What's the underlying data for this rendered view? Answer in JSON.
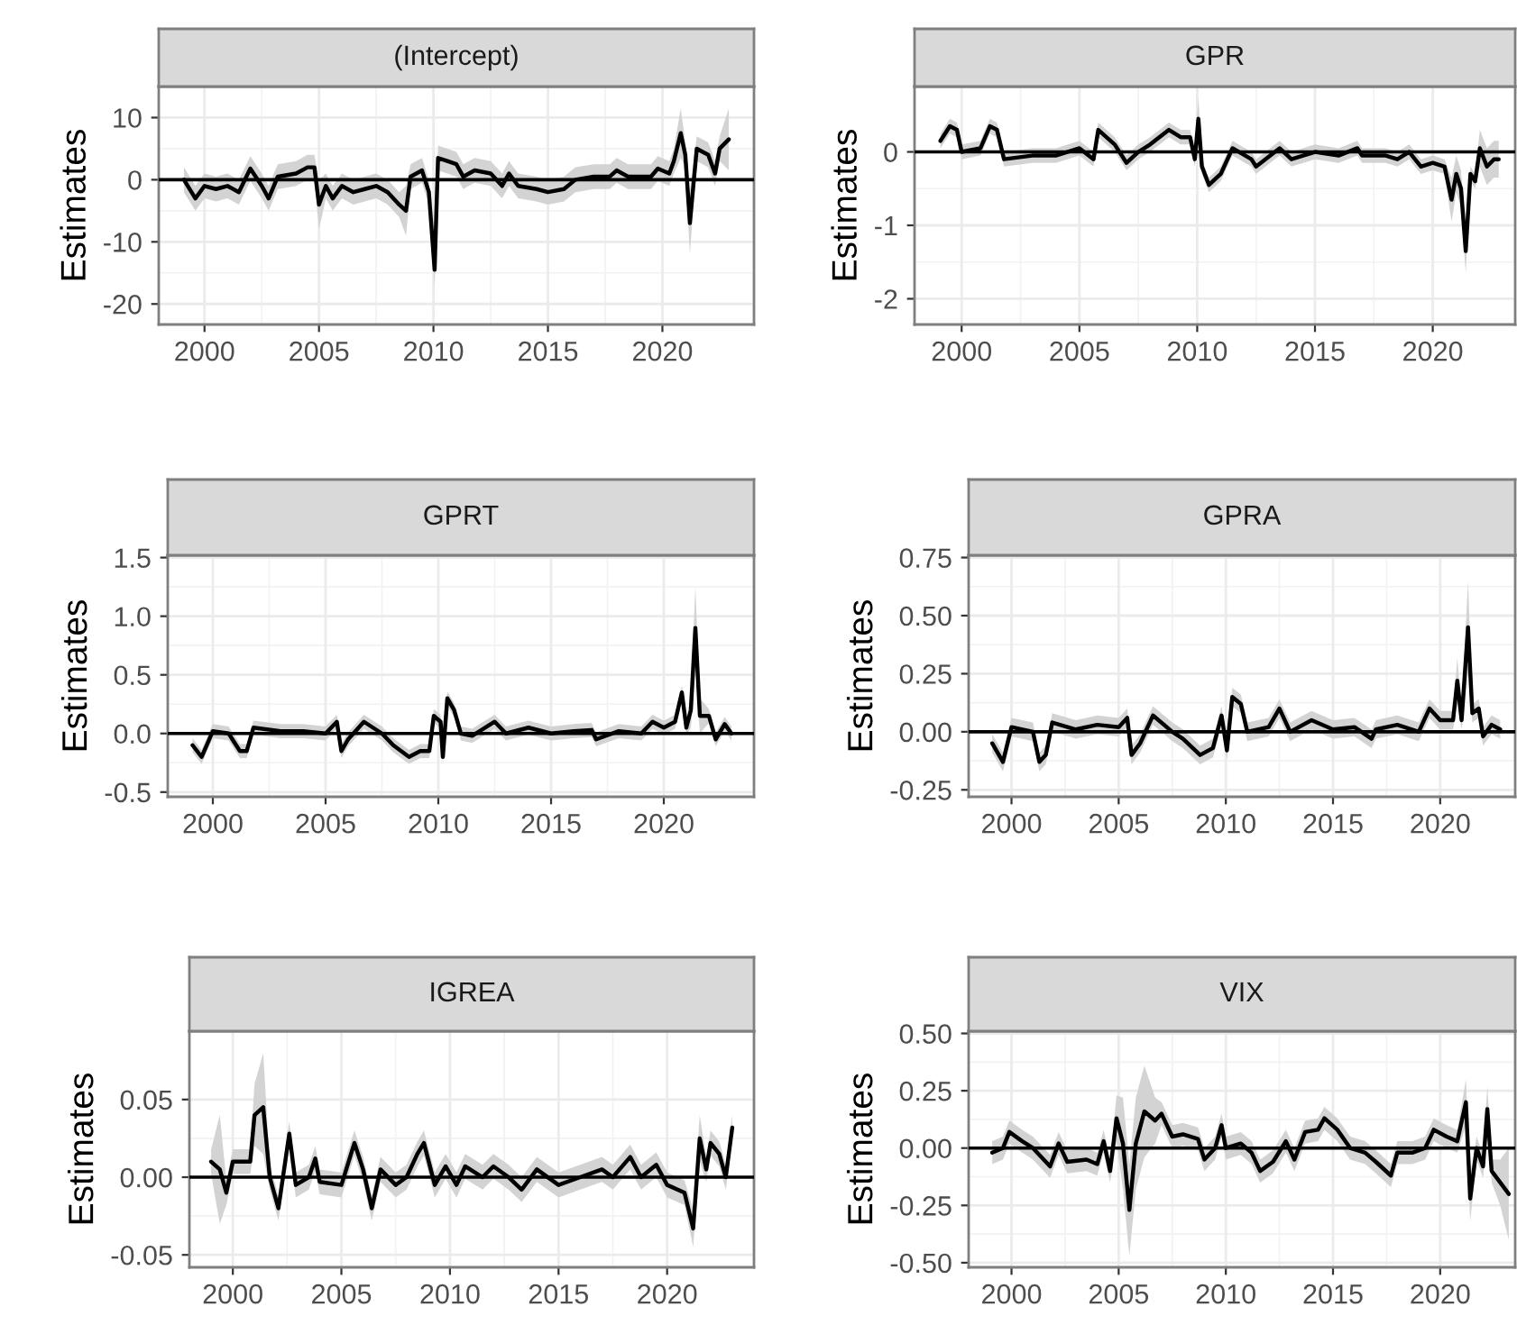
{
  "chart_data": [
    {
      "type": "line",
      "title": "(Intercept)",
      "ylabel": "Estimates",
      "xlim": [
        1998,
        2024
      ],
      "xticks": [
        2000,
        2005,
        2010,
        2015,
        2020
      ],
      "ylim": [
        -23.3,
        15
      ],
      "yticks": [
        -20,
        -10,
        0,
        10
      ],
      "grid": true,
      "x": [
        1999.1,
        1999.6,
        2000,
        2000.5,
        2001,
        2001.5,
        2002,
        2002.5,
        2002.8,
        2003.2,
        2004,
        2004.5,
        2004.8,
        2005,
        2005.3,
        2005.6,
        2006,
        2006.5,
        2007,
        2007.5,
        2008,
        2008.5,
        2008.8,
        2009,
        2009.5,
        2009.8,
        2010.05,
        2010.2,
        2010.6,
        2011,
        2011.3,
        2011.8,
        2012.5,
        2013,
        2013.3,
        2013.7,
        2014.5,
        2015,
        2015.7,
        2016.2,
        2017,
        2017.7,
        2018,
        2018.5,
        2019.5,
        2019.8,
        2020.3,
        2020.5,
        2020.8,
        2021,
        2021.2,
        2021.5,
        2022,
        2022.3,
        2022.5,
        2022.9
      ],
      "series": [
        {
          "color": "#000000",
          "values": [
            0,
            -3,
            -1,
            -1.5,
            -1,
            -2,
            1.8,
            -1,
            -3,
            0.5,
            1,
            2,
            2,
            -4,
            -1,
            -3,
            -1,
            -2,
            -1.5,
            -1,
            -2,
            -4,
            -5,
            0.5,
            1.5,
            -2,
            -14.5,
            3.5,
            3,
            2.5,
            0.5,
            1.5,
            1,
            -1,
            1,
            -1,
            -1.5,
            -2,
            -1.5,
            0,
            0.5,
            0.5,
            1.5,
            0.5,
            0.5,
            1.8,
            1,
            3,
            7.5,
            4,
            -7,
            5,
            4,
            1,
            5,
            6.5
          ],
          "lower": [
            -2,
            -5,
            -3,
            -3.5,
            -3,
            -4,
            -0.2,
            -3,
            -5,
            -1.5,
            -1,
            0,
            0,
            -8,
            -3,
            -5,
            -3,
            -4,
            -3.5,
            -3,
            -4,
            -6,
            -9,
            -1.5,
            -0.5,
            -4,
            -17.5,
            1.5,
            1,
            0.5,
            -1.5,
            -0.5,
            -1,
            -3,
            -1,
            -3,
            -3.5,
            -4,
            -3.5,
            -2,
            -1.5,
            -1.5,
            -0.5,
            -1.5,
            -1.5,
            -0.2,
            -1,
            1,
            3.5,
            2,
            -12,
            3,
            2,
            -1,
            3,
            1.5
          ],
          "upper": [
            2,
            -1,
            1,
            0.5,
            1,
            0,
            3.8,
            1,
            -1,
            2.5,
            3,
            4,
            4,
            0,
            1,
            -1,
            1,
            0,
            0.5,
            1,
            0,
            -2,
            -1,
            2.5,
            3.5,
            0,
            -11.5,
            5.5,
            5,
            4.5,
            2.5,
            3.5,
            3,
            1,
            3,
            1,
            0.5,
            0,
            0.5,
            2,
            2.5,
            2.5,
            3.5,
            2.5,
            2.5,
            3.8,
            3,
            5,
            11.5,
            6,
            -2,
            7,
            6,
            3,
            7,
            11.5
          ]
        }
      ],
      "ref_lines": [
        {
          "axis": "y",
          "value": 0,
          "color": "#000000"
        }
      ]
    },
    {
      "type": "line",
      "title": "GPR",
      "ylabel": "Estimates",
      "xlim": [
        1998,
        2023.5
      ],
      "xticks": [
        2000,
        2005,
        2010,
        2015,
        2020
      ],
      "ylim": [
        -2.35,
        0.89
      ],
      "yticks": [
        -2,
        -1,
        0
      ],
      "grid": true,
      "x": [
        1999.1,
        1999.5,
        1999.8,
        2000,
        2000.8,
        2001.2,
        2001.5,
        2001.8,
        2003,
        2004,
        2005,
        2005.6,
        2005.8,
        2006.5,
        2007,
        2007.5,
        2008,
        2008.8,
        2009.3,
        2009.7,
        2009.9,
        2010.05,
        2010.2,
        2010.5,
        2011,
        2011.5,
        2012.3,
        2012.5,
        2013.5,
        2014,
        2015,
        2016,
        2016.8,
        2017,
        2018,
        2018.5,
        2019,
        2019.5,
        2020,
        2020.5,
        2020.8,
        2021,
        2021.2,
        2021.4,
        2021.6,
        2021.8,
        2022,
        2022.3,
        2022.6,
        2022.8
      ],
      "series": [
        {
          "color": "#000000",
          "values": [
            0.15,
            0.35,
            0.3,
            0,
            0.05,
            0.35,
            0.3,
            -0.1,
            -0.05,
            -0.05,
            0.05,
            -0.1,
            0.3,
            0.1,
            -0.15,
            0,
            0.1,
            0.3,
            0.2,
            0.2,
            -0.1,
            0.45,
            -0.2,
            -0.45,
            -0.3,
            0.05,
            -0.1,
            -0.2,
            0.05,
            -0.1,
            0,
            -0.05,
            0.05,
            -0.05,
            -0.05,
            -0.1,
            0,
            -0.2,
            -0.15,
            -0.2,
            -0.65,
            -0.3,
            -0.5,
            -1.35,
            -0.3,
            -0.4,
            0.05,
            -0.2,
            -0.1,
            -0.1
          ],
          "lower": [
            0.05,
            0.25,
            0.2,
            -0.1,
            -0.05,
            0.25,
            0.2,
            -0.2,
            -0.15,
            -0.15,
            -0.05,
            -0.2,
            0.2,
            0,
            -0.25,
            -0.1,
            0,
            0.2,
            0.1,
            0.1,
            -0.2,
            0.15,
            -0.3,
            -0.55,
            -0.4,
            -0.05,
            -0.2,
            -0.3,
            -0.05,
            -0.2,
            -0.1,
            -0.15,
            -0.05,
            -0.15,
            -0.15,
            -0.2,
            -0.1,
            -0.3,
            -0.25,
            -0.3,
            -0.95,
            -0.55,
            -0.75,
            -1.65,
            -0.4,
            -0.5,
            -0.2,
            -0.45,
            -0.35,
            -0.35
          ],
          "upper": [
            0.25,
            0.45,
            0.4,
            0.1,
            0.15,
            0.45,
            0.4,
            0,
            0.05,
            0.05,
            0.15,
            0,
            0.4,
            0.2,
            -0.05,
            0.1,
            0.2,
            0.4,
            0.3,
            0.3,
            0,
            0.75,
            -0.1,
            -0.35,
            -0.2,
            0.15,
            0,
            -0.1,
            0.15,
            0,
            0.1,
            0.05,
            0.15,
            0.05,
            0.05,
            0,
            0.1,
            -0.1,
            -0.05,
            -0.1,
            -0.35,
            -0.05,
            -0.25,
            -1.05,
            -0.2,
            -0.3,
            0.3,
            0.05,
            0.15,
            0.15
          ]
        }
      ],
      "ref_lines": [
        {
          "axis": "y",
          "value": 0,
          "color": "#000000"
        }
      ]
    },
    {
      "type": "line",
      "title": "GPRT",
      "ylabel": "Estimates",
      "xlim": [
        1998,
        2024
      ],
      "xticks": [
        2000,
        2005,
        2010,
        2015,
        2020
      ],
      "ylim": [
        -0.54,
        1.52
      ],
      "yticks": [
        {
          "value": -0.5,
          "label": "-0.5"
        },
        {
          "value": 0,
          "label": "0.0"
        },
        {
          "value": 0.5,
          "label": "0.5"
        },
        {
          "value": 1,
          "label": "1.0"
        },
        {
          "value": 1.5,
          "label": "1.5"
        }
      ],
      "grid": true,
      "x": [
        1999.1,
        1999.5,
        2000,
        2000.7,
        2001.2,
        2001.5,
        2001.8,
        2003,
        2004,
        2005,
        2005.5,
        2005.7,
        2006,
        2006.7,
        2007.5,
        2008,
        2008.7,
        2009.2,
        2009.6,
        2009.8,
        2010.1,
        2010.2,
        2010.4,
        2010.7,
        2011,
        2011.5,
        2012.5,
        2013,
        2014,
        2015,
        2016,
        2016.8,
        2017,
        2018,
        2019,
        2019.5,
        2020,
        2020.5,
        2020.8,
        2021,
        2021.2,
        2021.4,
        2021.6,
        2022,
        2022.3,
        2022.7,
        2023
      ],
      "series": [
        {
          "color": "#000000",
          "values": [
            -0.1,
            -0.2,
            0.02,
            0,
            -0.15,
            -0.15,
            0.05,
            0.02,
            0.02,
            0,
            0.1,
            -0.15,
            -0.05,
            0.1,
            0,
            -0.1,
            -0.2,
            -0.15,
            -0.15,
            0.15,
            0.1,
            -0.2,
            0.3,
            0.2,
            0,
            -0.02,
            0.1,
            0,
            0.05,
            0,
            0.02,
            0.03,
            -0.05,
            0.02,
            0,
            0.1,
            0.05,
            0.1,
            0.35,
            0.05,
            0.2,
            0.9,
            0.15,
            0.15,
            -0.05,
            0.08,
            0
          ],
          "lower": [
            -0.16,
            -0.26,
            -0.04,
            -0.06,
            -0.21,
            -0.21,
            -0.01,
            -0.04,
            -0.04,
            -0.06,
            0.04,
            -0.21,
            -0.11,
            0.04,
            -0.06,
            -0.16,
            -0.26,
            -0.21,
            -0.21,
            0.09,
            0.04,
            -0.26,
            0.24,
            0.14,
            -0.06,
            -0.08,
            0.04,
            -0.06,
            -0.01,
            -0.06,
            -0.04,
            -0.03,
            -0.11,
            -0.04,
            -0.06,
            0.04,
            -0.01,
            0.04,
            0.29,
            -0.01,
            0.05,
            0.55,
            0,
            0.09,
            -0.11,
            0.02,
            -0.06
          ],
          "upper": [
            -0.04,
            -0.14,
            0.08,
            0.06,
            -0.09,
            -0.09,
            0.11,
            0.08,
            0.08,
            0.06,
            0.16,
            -0.09,
            0.01,
            0.16,
            0.06,
            -0.04,
            -0.14,
            -0.09,
            -0.09,
            0.21,
            0.16,
            -0.14,
            0.36,
            0.26,
            0.06,
            0.04,
            0.16,
            0.06,
            0.11,
            0.06,
            0.08,
            0.09,
            0.01,
            0.08,
            0.06,
            0.16,
            0.11,
            0.16,
            0.41,
            0.11,
            0.35,
            1.25,
            0.3,
            0.21,
            0.01,
            0.14,
            0.06
          ]
        }
      ],
      "ref_lines": [
        {
          "axis": "y",
          "value": 0,
          "color": "#000000"
        }
      ]
    },
    {
      "type": "line",
      "title": "GPRA",
      "ylabel": "Estimates",
      "xlim": [
        1998,
        2023.5
      ],
      "xticks": [
        2000,
        2005,
        2010,
        2015,
        2020
      ],
      "ylim": [
        -0.28,
        0.76
      ],
      "yticks": [
        {
          "value": -0.25,
          "label": "-0.25"
        },
        {
          "value": 0,
          "label": "0.00"
        },
        {
          "value": 0.25,
          "label": "0.25"
        },
        {
          "value": 0.5,
          "label": "0.50"
        },
        {
          "value": 0.75,
          "label": "0.75"
        }
      ],
      "grid": true,
      "x": [
        1999.1,
        1999.6,
        2000,
        2001,
        2001.3,
        2001.6,
        2001.9,
        2003,
        2004,
        2005,
        2005.4,
        2005.6,
        2006,
        2006.6,
        2007.5,
        2008,
        2008.8,
        2009.4,
        2009.8,
        2010.05,
        2010.3,
        2010.7,
        2011,
        2012,
        2012.5,
        2013,
        2014,
        2015,
        2016,
        2016.8,
        2017,
        2018,
        2019,
        2019.5,
        2020,
        2020.6,
        2020.8,
        2021,
        2021.3,
        2021.5,
        2021.8,
        2022,
        2022.4,
        2022.8
      ],
      "series": [
        {
          "color": "#000000",
          "values": [
            -0.05,
            -0.13,
            0.02,
            0,
            -0.13,
            -0.1,
            0.04,
            0.01,
            0.03,
            0.02,
            0.06,
            -0.1,
            -0.05,
            0.07,
            0,
            -0.03,
            -0.1,
            -0.07,
            0.07,
            -0.08,
            0.15,
            0.12,
            0,
            0.02,
            0.1,
            0,
            0.05,
            0.01,
            0.02,
            -0.03,
            0.01,
            0.03,
            0,
            0.1,
            0.05,
            0.05,
            0.22,
            0.05,
            0.45,
            0.08,
            0.1,
            -0.02,
            0.03,
            0.01
          ],
          "lower": [
            -0.09,
            -0.17,
            -0.02,
            -0.04,
            -0.17,
            -0.14,
            0,
            -0.03,
            -0.01,
            -0.02,
            0.02,
            -0.14,
            -0.09,
            0.03,
            -0.04,
            -0.07,
            -0.14,
            -0.11,
            0.03,
            -0.12,
            0.11,
            0.08,
            -0.04,
            -0.02,
            0.06,
            -0.04,
            0.01,
            -0.03,
            -0.02,
            -0.07,
            -0.03,
            -0.01,
            -0.04,
            0.06,
            0.01,
            0.01,
            0.12,
            0.01,
            0.25,
            0.04,
            0.06,
            -0.06,
            -0.01,
            -0.03
          ],
          "upper": [
            -0.01,
            -0.09,
            0.06,
            0.04,
            -0.09,
            -0.06,
            0.08,
            0.05,
            0.07,
            0.06,
            0.1,
            -0.06,
            -0.01,
            0.11,
            0.04,
            0.01,
            -0.06,
            -0.03,
            0.11,
            -0.04,
            0.19,
            0.16,
            0.04,
            0.06,
            0.14,
            0.04,
            0.09,
            0.05,
            0.06,
            0.01,
            0.05,
            0.07,
            0.04,
            0.14,
            0.09,
            0.09,
            0.32,
            0.09,
            0.65,
            0.12,
            0.14,
            0.02,
            0.07,
            0.05
          ]
        }
      ],
      "ref_lines": [
        {
          "axis": "y",
          "value": 0,
          "color": "#000000"
        }
      ]
    },
    {
      "type": "line",
      "title": "IGREA",
      "ylabel": "Estimates",
      "xlim": [
        1998,
        2024
      ],
      "xticks": [
        2000,
        2005,
        2010,
        2015,
        2020
      ],
      "ylim": [
        -0.058,
        0.094
      ],
      "yticks": [
        {
          "value": -0.05,
          "label": "-0.05"
        },
        {
          "value": 0,
          "label": "0.00"
        },
        {
          "value": 0.05,
          "label": "0.05"
        }
      ],
      "grid": true,
      "x": [
        1999,
        1999.4,
        1999.7,
        2000,
        2000.8,
        2001,
        2001.4,
        2001.7,
        2002.1,
        2002.6,
        2002.9,
        2003.5,
        2003.8,
        2004,
        2005,
        2005.6,
        2006,
        2006.4,
        2006.8,
        2007.5,
        2008,
        2008.5,
        2008.8,
        2009.3,
        2009.8,
        2010.3,
        2010.7,
        2011.5,
        2012,
        2012.7,
        2013.3,
        2014,
        2015,
        2016,
        2017,
        2017.5,
        2018.3,
        2018.8,
        2019.5,
        2020,
        2020.8,
        2021.2,
        2021.5,
        2021.8,
        2022,
        2022.4,
        2022.7,
        2023
      ],
      "series": [
        {
          "color": "#000000",
          "values": [
            0.01,
            0.005,
            -0.01,
            0.01,
            0.01,
            0.04,
            0.045,
            0,
            -0.02,
            0.028,
            -0.005,
            0,
            0.012,
            -0.003,
            -0.005,
            0.022,
            0.005,
            -0.02,
            0.005,
            -0.005,
            0,
            0.015,
            0.022,
            -0.005,
            0.007,
            -0.005,
            0.007,
            0,
            0.007,
            0,
            -0.008,
            0.005,
            -0.005,
            0,
            0.005,
            0,
            0.013,
            0,
            0.008,
            -0.005,
            -0.01,
            -0.033,
            0.025,
            0.005,
            0.022,
            0.015,
            0,
            0.032
          ],
          "lower": [
            0.002,
            -0.03,
            -0.018,
            0.002,
            0.002,
            0.02,
            0.015,
            -0.008,
            -0.028,
            0.02,
            -0.013,
            -0.008,
            0.004,
            -0.011,
            -0.013,
            0.014,
            -0.003,
            -0.028,
            -0.003,
            -0.013,
            -0.008,
            0.007,
            0.014,
            -0.013,
            -0.001,
            -0.013,
            -0.001,
            -0.008,
            -0.001,
            -0.008,
            -0.016,
            -0.003,
            -0.013,
            -0.008,
            -0.003,
            -0.008,
            0.005,
            -0.008,
            0,
            -0.013,
            -0.018,
            -0.045,
            0.01,
            -0.003,
            0.014,
            0.007,
            -0.008,
            0.024
          ],
          "upper": [
            0.018,
            0.04,
            -0.002,
            0.018,
            0.018,
            0.06,
            0.08,
            0.008,
            -0.012,
            0.036,
            0.003,
            0.008,
            0.02,
            0.005,
            0.003,
            0.03,
            0.013,
            -0.012,
            0.013,
            0.003,
            0.008,
            0.023,
            0.03,
            0.003,
            0.015,
            0.003,
            0.015,
            0.008,
            0.015,
            0.008,
            0,
            0.013,
            0.003,
            0.008,
            0.013,
            0.008,
            0.021,
            0.008,
            0.016,
            0.003,
            -0.002,
            -0.021,
            0.04,
            0.013,
            0.03,
            0.023,
            0.008,
            0.04
          ]
        }
      ],
      "ref_lines": [
        {
          "axis": "y",
          "value": 0,
          "color": "#000000"
        }
      ]
    },
    {
      "type": "line",
      "title": "VIX",
      "ylabel": "Estimates",
      "xlim": [
        1998,
        2023.5
      ],
      "xticks": [
        2000,
        2005,
        2010,
        2015,
        2020
      ],
      "ylim": [
        -0.52,
        0.51
      ],
      "yticks": [
        {
          "value": -0.5,
          "label": "-0.50"
        },
        {
          "value": -0.25,
          "label": "-0.25"
        },
        {
          "value": 0,
          "label": "0.00"
        },
        {
          "value": 0.25,
          "label": "0.25"
        },
        {
          "value": 0.5,
          "label": "0.50"
        }
      ],
      "grid": true,
      "x": [
        1999.1,
        1999.6,
        1999.9,
        2000.5,
        2001,
        2001.8,
        2002.2,
        2002.6,
        2003.5,
        2004,
        2004.3,
        2004.6,
        2004.9,
        2005.2,
        2005.5,
        2005.8,
        2006.2,
        2006.7,
        2007,
        2007.5,
        2008,
        2008.7,
        2009,
        2009.5,
        2009.8,
        2010,
        2010.7,
        2011.2,
        2011.6,
        2012.2,
        2012.8,
        2013.2,
        2013.7,
        2014.3,
        2014.6,
        2015.2,
        2015.8,
        2016.5,
        2017,
        2017.7,
        2018,
        2018.7,
        2019.3,
        2019.7,
        2020.3,
        2020.8,
        2021.2,
        2021.4,
        2021.7,
        2022,
        2022.2,
        2022.4,
        2022.8,
        2023.2
      ],
      "series": [
        {
          "color": "#000000",
          "values": [
            -0.02,
            0,
            0.07,
            0.03,
            0,
            -0.08,
            0.02,
            -0.06,
            -0.05,
            -0.07,
            0.03,
            -0.1,
            0.13,
            0.02,
            -0.27,
            0.02,
            0.16,
            0.12,
            0.15,
            0.05,
            0.06,
            0.04,
            -0.05,
            0,
            0.1,
            0,
            0.02,
            -0.02,
            -0.1,
            -0.06,
            0.03,
            -0.05,
            0.07,
            0.08,
            0.13,
            0.08,
            0,
            -0.02,
            -0.06,
            -0.12,
            -0.02,
            -0.02,
            0,
            0.08,
            0.05,
            0.03,
            0.2,
            -0.22,
            0,
            -0.08,
            0.17,
            -0.1,
            -0.15,
            -0.2
          ],
          "lower": [
            -0.07,
            -0.05,
            0.02,
            -0.02,
            -0.05,
            -0.13,
            -0.03,
            -0.11,
            -0.1,
            -0.12,
            -0.02,
            -0.15,
            0.03,
            -0.18,
            -0.47,
            -0.18,
            -0.04,
            0.02,
            0.1,
            0,
            0.01,
            -0.01,
            -0.1,
            -0.05,
            0.05,
            -0.05,
            -0.03,
            -0.07,
            -0.15,
            -0.11,
            -0.02,
            -0.1,
            0.02,
            0.03,
            0.08,
            0.03,
            -0.05,
            -0.07,
            -0.11,
            -0.17,
            -0.07,
            -0.07,
            -0.05,
            0.03,
            0,
            -0.02,
            0.1,
            -0.32,
            -0.05,
            -0.13,
            0.07,
            -0.15,
            -0.25,
            -0.4
          ],
          "upper": [
            0.03,
            0.05,
            0.12,
            0.08,
            0.05,
            -0.03,
            0.07,
            -0.01,
            0,
            -0.02,
            0.08,
            -0.05,
            0.23,
            0.22,
            -0.07,
            0.22,
            0.36,
            0.22,
            0.2,
            0.1,
            0.11,
            0.09,
            0,
            0.05,
            0.15,
            0.05,
            0.07,
            0.03,
            -0.05,
            -0.01,
            0.08,
            0,
            0.12,
            0.13,
            0.18,
            0.13,
            0.05,
            0.03,
            -0.01,
            -0.07,
            0.03,
            0.03,
            0.05,
            0.13,
            0.1,
            0.08,
            0.3,
            -0.12,
            0.05,
            -0.03,
            0.27,
            -0.05,
            -0.05,
            0
          ]
        }
      ],
      "ref_lines": [
        {
          "axis": "y",
          "value": 0,
          "color": "#000000"
        }
      ]
    }
  ]
}
